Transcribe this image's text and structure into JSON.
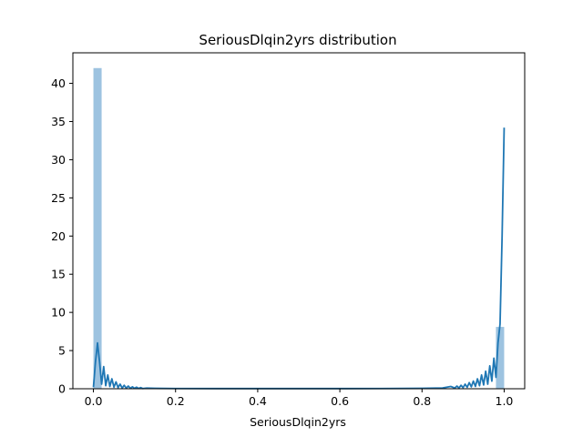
{
  "chart_data": {
    "type": "bar",
    "title": "SeriousDlqin2yrs distribution",
    "xlabel": "SeriousDlqin2yrs",
    "ylabel": "",
    "xlim": [
      -0.05,
      1.05
    ],
    "ylim": [
      0,
      44
    ],
    "x_ticks": [
      0.0,
      0.2,
      0.4,
      0.6,
      0.8,
      1.0
    ],
    "x_tick_labels": [
      "0.0",
      "0.2",
      "0.4",
      "0.6",
      "0.8",
      "1.0"
    ],
    "y_ticks": [
      0,
      5,
      10,
      15,
      20,
      25,
      30,
      35,
      40
    ],
    "y_tick_labels": [
      "0",
      "5",
      "10",
      "15",
      "20",
      "25",
      "30",
      "35",
      "40"
    ],
    "grid": false,
    "histogram": {
      "color": "#9dc3e0",
      "bins": [
        {
          "x0": 0.0,
          "x1": 0.02,
          "value": 42
        },
        {
          "x0": 0.98,
          "x1": 1.0,
          "value": 8.1
        }
      ]
    },
    "kde_line": {
      "color": "#1f77b4",
      "x": [
        0.0,
        0.005,
        0.01,
        0.015,
        0.02,
        0.025,
        0.03,
        0.035,
        0.04,
        0.045,
        0.05,
        0.055,
        0.06,
        0.065,
        0.07,
        0.075,
        0.08,
        0.085,
        0.09,
        0.095,
        0.1,
        0.105,
        0.11,
        0.115,
        0.12,
        0.13,
        0.15,
        0.2,
        0.3,
        0.4,
        0.5,
        0.6,
        0.7,
        0.8,
        0.85,
        0.87,
        0.88,
        0.885,
        0.89,
        0.895,
        0.9,
        0.905,
        0.91,
        0.915,
        0.92,
        0.925,
        0.93,
        0.935,
        0.94,
        0.945,
        0.95,
        0.955,
        0.96,
        0.965,
        0.97,
        0.975,
        0.98,
        0.985,
        0.99,
        0.995,
        1.0
      ],
      "y": [
        0.2,
        3.5,
        6.0,
        3.5,
        0.6,
        2.9,
        0.4,
        1.8,
        0.3,
        1.3,
        0.2,
        0.9,
        0.15,
        0.6,
        0.1,
        0.45,
        0.08,
        0.35,
        0.06,
        0.25,
        0.05,
        0.2,
        0.04,
        0.15,
        0.03,
        0.08,
        0.05,
        0.03,
        0.02,
        0.02,
        0.02,
        0.02,
        0.03,
        0.05,
        0.1,
        0.3,
        0.1,
        0.35,
        0.1,
        0.45,
        0.15,
        0.6,
        0.2,
        0.8,
        0.25,
        1.0,
        0.3,
        1.3,
        0.4,
        1.8,
        0.5,
        2.3,
        0.6,
        3.0,
        1.0,
        4.0,
        1.5,
        6.0,
        8.5,
        20.0,
        34.2
      ]
    }
  }
}
